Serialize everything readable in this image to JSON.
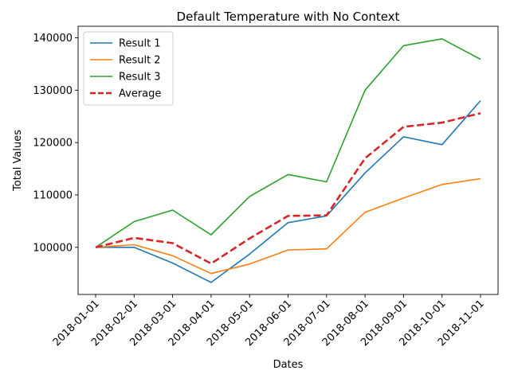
{
  "chart_data": {
    "type": "line",
    "title": "Default Temperature with No Context",
    "xlabel": "Dates",
    "ylabel": "Total Values",
    "x": [
      "2018-01-01",
      "2018-02-01",
      "2018-03-01",
      "2018-04-01",
      "2018-05-01",
      "2018-06-01",
      "2018-07-01",
      "2018-08-01",
      "2018-09-01",
      "2018-10-01",
      "2018-11-01"
    ],
    "ylim": [
      91000,
      142200
    ],
    "yticks": [
      100000,
      110000,
      120000,
      130000,
      140000
    ],
    "grid": false,
    "legend_position": "top-left",
    "series": [
      {
        "name": "Result 1",
        "color": "#1f77b4",
        "style": "solid",
        "values": [
          100000,
          100000,
          97000,
          93300,
          98700,
          104700,
          106000,
          114200,
          121100,
          119600,
          128000
        ]
      },
      {
        "name": "Result 2",
        "color": "#ff7f0e",
        "style": "solid",
        "values": [
          100000,
          100500,
          98400,
          95000,
          96800,
          99500,
          99700,
          106700,
          109400,
          112000,
          113100
        ]
      },
      {
        "name": "Result 3",
        "color": "#2ca02c",
        "style": "solid",
        "values": [
          100000,
          104900,
          107100,
          102400,
          109700,
          113900,
          112500,
          130000,
          138500,
          139800,
          135900
        ]
      },
      {
        "name": "Average",
        "color": "#d62728",
        "style": "dashed",
        "values": [
          100000,
          101800,
          100800,
          96900,
          101700,
          106000,
          106100,
          117000,
          123000,
          123800,
          125600
        ]
      }
    ]
  }
}
